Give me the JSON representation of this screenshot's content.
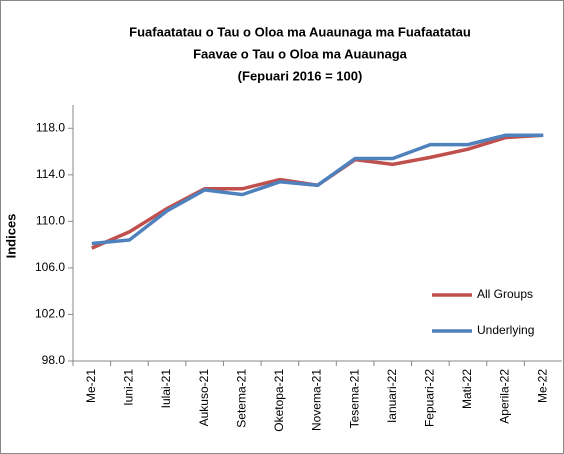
{
  "chart_data": {
    "type": "line",
    "title": [
      "Fuafaatatau o Tau o Oloa ma Auaunaga ma Fuafaatatau",
      "Faavae o Tau o Oloa ma Auaunaga",
      "(Fepuari 2016 = 100)"
    ],
    "y_label": "Indices",
    "categories": [
      "Me-21",
      "Iuni-21",
      "Iulai-21",
      "Aukuso-21",
      "Setema-21",
      "Oketopa-21",
      "Novema-21",
      "Tesema-21",
      "Ianuari-22",
      "Fepuari-22",
      "Mati-22",
      "Aperila-22",
      "Me-22"
    ],
    "series": [
      {
        "name": "All Groups",
        "color": "#c0504d",
        "values": [
          107.7,
          109.1,
          111.1,
          112.8,
          112.8,
          113.6,
          113.1,
          115.3,
          114.9,
          115.5,
          116.2,
          117.2,
          117.4
        ]
      },
      {
        "name": "Underlying",
        "color": "#4f81bd",
        "values": [
          108.1,
          108.4,
          110.9,
          112.7,
          112.3,
          113.4,
          113.1,
          115.4,
          115.4,
          116.6,
          116.6,
          117.4,
          117.4
        ]
      }
    ],
    "ylim": [
      98,
      120
    ],
    "yticks": [
      {
        "value": 98,
        "label": "98.0"
      },
      {
        "value": 102,
        "label": "102.0"
      },
      {
        "value": 106,
        "label": "106.0"
      },
      {
        "value": 110,
        "label": "110.0"
      },
      {
        "value": 114,
        "label": "114.0"
      },
      {
        "value": 118,
        "label": "118.0"
      }
    ],
    "legend": "right"
  }
}
